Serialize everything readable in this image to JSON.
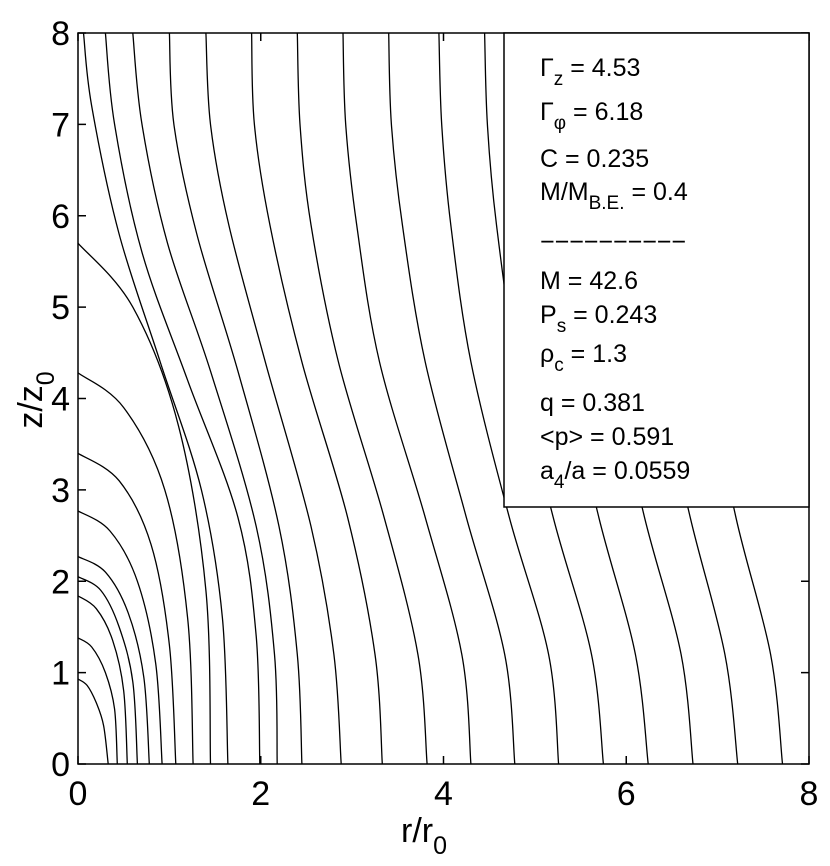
{
  "chart_data": {
    "type": "line",
    "title": "",
    "xlabel": "r/r",
    "xlabel_sub": "0",
    "ylabel": "z/z",
    "ylabel_sub": "0",
    "xlim": [
      0,
      8
    ],
    "ylim": [
      0,
      8
    ],
    "xticks": [
      "0",
      "2",
      "4",
      "6",
      "8"
    ],
    "yticks": [
      "0",
      "1",
      "2",
      "3",
      "4",
      "5",
      "6",
      "7",
      "8"
    ],
    "grid": false,
    "description_lines": "contour lines of field",
    "series": [
      {
        "points": [
          [
            0.0,
            0.93
          ],
          [
            0.1,
            0.86
          ],
          [
            0.2,
            0.67
          ],
          [
            0.28,
            0.42
          ],
          [
            0.33,
            0.0
          ]
        ]
      },
      {
        "points": [
          [
            0.0,
            1.38
          ],
          [
            0.15,
            1.28
          ],
          [
            0.3,
            1.0
          ],
          [
            0.4,
            0.6
          ],
          [
            0.43,
            0.0
          ]
        ]
      },
      {
        "points": [
          [
            0.0,
            1.84
          ],
          [
            0.2,
            1.7
          ],
          [
            0.38,
            1.35
          ],
          [
            0.5,
            0.8
          ],
          [
            0.54,
            0.0
          ]
        ]
      },
      {
        "points": [
          [
            0.0,
            2.05
          ],
          [
            0.25,
            1.9
          ],
          [
            0.45,
            1.5
          ],
          [
            0.6,
            0.9
          ],
          [
            0.65,
            0.0
          ]
        ]
      },
      {
        "points": [
          [
            0.0,
            2.27
          ],
          [
            0.3,
            2.1
          ],
          [
            0.55,
            1.65
          ],
          [
            0.72,
            0.95
          ],
          [
            0.78,
            0.0
          ]
        ]
      },
      {
        "points": [
          [
            0.0,
            2.77
          ],
          [
            0.35,
            2.55
          ],
          [
            0.65,
            2.0
          ],
          [
            0.85,
            1.1
          ],
          [
            0.92,
            0.0
          ]
        ]
      },
      {
        "points": [
          [
            0.0,
            3.4
          ],
          [
            0.45,
            3.1
          ],
          [
            0.8,
            2.4
          ],
          [
            1.0,
            1.3
          ],
          [
            1.07,
            0.0
          ]
        ]
      },
      {
        "points": [
          [
            0.0,
            4.28
          ],
          [
            0.5,
            3.9
          ],
          [
            0.95,
            3.0
          ],
          [
            1.2,
            1.6
          ],
          [
            1.26,
            0.0
          ]
        ]
      },
      {
        "points": [
          [
            0.0,
            5.7
          ],
          [
            0.6,
            5.0
          ],
          [
            1.1,
            3.7
          ],
          [
            1.4,
            1.9
          ],
          [
            1.45,
            0.0
          ]
        ]
      },
      {
        "points": [
          [
            0.06,
            8.0
          ],
          [
            0.15,
            7.2
          ],
          [
            0.45,
            5.8
          ],
          [
            0.9,
            4.4
          ],
          [
            1.35,
            3.0
          ],
          [
            1.58,
            1.6
          ],
          [
            1.64,
            0.0
          ]
        ]
      },
      {
        "points": [
          [
            0.3,
            8.0
          ],
          [
            0.4,
            7.0
          ],
          [
            0.7,
            5.6
          ],
          [
            1.2,
            4.2
          ],
          [
            1.75,
            2.7
          ],
          [
            1.95,
            1.4
          ],
          [
            1.99,
            0.0
          ]
        ]
      },
      {
        "points": [
          [
            0.6,
            8.0
          ],
          [
            0.7,
            7.0
          ],
          [
            0.98,
            5.7
          ],
          [
            1.45,
            4.3
          ],
          [
            1.95,
            2.6
          ],
          [
            2.15,
            1.2
          ],
          [
            2.18,
            0.0
          ]
        ]
      },
      {
        "points": [
          [
            1.0,
            8.0
          ],
          [
            1.05,
            7.0
          ],
          [
            1.3,
            5.8
          ],
          [
            1.75,
            4.3
          ],
          [
            2.2,
            2.6
          ],
          [
            2.4,
            1.2
          ],
          [
            2.45,
            0.0
          ]
        ]
      },
      {
        "points": [
          [
            1.4,
            8.0
          ],
          [
            1.45,
            7.0
          ],
          [
            1.65,
            5.9
          ],
          [
            2.05,
            4.4
          ],
          [
            2.55,
            2.6
          ],
          [
            2.8,
            1.2
          ],
          [
            2.88,
            0.0
          ]
        ]
      },
      {
        "points": [
          [
            1.9,
            8.0
          ],
          [
            1.93,
            7.0
          ],
          [
            2.1,
            5.9
          ],
          [
            2.45,
            4.4
          ],
          [
            2.95,
            2.7
          ],
          [
            3.25,
            1.2
          ],
          [
            3.33,
            0.0
          ]
        ]
      },
      {
        "points": [
          [
            2.4,
            8.0
          ],
          [
            2.43,
            7.0
          ],
          [
            2.55,
            5.9
          ],
          [
            2.85,
            4.4
          ],
          [
            3.35,
            2.7
          ],
          [
            3.72,
            1.2
          ],
          [
            3.82,
            0.0
          ]
        ]
      },
      {
        "points": [
          [
            2.9,
            8.0
          ],
          [
            2.93,
            7.0
          ],
          [
            3.05,
            5.9
          ],
          [
            3.3,
            4.4
          ],
          [
            3.8,
            2.7
          ],
          [
            4.2,
            1.2
          ],
          [
            4.3,
            0.0
          ]
        ]
      },
      {
        "points": [
          [
            3.4,
            8.0
          ],
          [
            3.43,
            7.0
          ],
          [
            3.55,
            5.9
          ],
          [
            3.8,
            4.4
          ],
          [
            4.25,
            2.7
          ],
          [
            4.67,
            1.2
          ],
          [
            4.78,
            0.0
          ]
        ]
      },
      {
        "points": [
          [
            3.95,
            8.0
          ],
          [
            3.98,
            7.0
          ],
          [
            4.08,
            5.9
          ],
          [
            4.3,
            4.4
          ],
          [
            4.72,
            2.7
          ],
          [
            5.15,
            1.2
          ],
          [
            5.26,
            0.0
          ]
        ]
      },
      {
        "points": [
          [
            4.45,
            8.0
          ],
          [
            4.48,
            7.0
          ],
          [
            4.58,
            5.9
          ],
          [
            4.8,
            4.4
          ],
          [
            5.2,
            2.7
          ],
          [
            5.62,
            1.2
          ],
          [
            5.75,
            0.0
          ]
        ]
      },
      {
        "points": [
          [
            5.0,
            8.0
          ],
          [
            5.03,
            7.0
          ],
          [
            5.12,
            5.9
          ],
          [
            5.32,
            4.4
          ],
          [
            5.7,
            2.7
          ],
          [
            6.1,
            1.2
          ],
          [
            6.24,
            0.0
          ]
        ]
      },
      {
        "points": [
          [
            5.55,
            8.0
          ],
          [
            5.57,
            7.0
          ],
          [
            5.65,
            5.9
          ],
          [
            5.83,
            4.4
          ],
          [
            6.2,
            2.7
          ],
          [
            6.6,
            1.2
          ],
          [
            6.73,
            0.0
          ]
        ]
      },
      {
        "points": [
          [
            6.05,
            8.0
          ],
          [
            6.07,
            7.0
          ],
          [
            6.15,
            5.9
          ],
          [
            6.33,
            4.4
          ],
          [
            6.7,
            2.7
          ],
          [
            7.08,
            1.2
          ],
          [
            7.22,
            0.0
          ]
        ]
      },
      {
        "points": [
          [
            6.6,
            8.0
          ],
          [
            6.62,
            7.0
          ],
          [
            6.7,
            5.9
          ],
          [
            6.87,
            4.4
          ],
          [
            7.2,
            2.7
          ],
          [
            7.58,
            1.2
          ],
          [
            7.71,
            0.0
          ]
        ]
      }
    ]
  },
  "legend": {
    "lines": [
      {
        "main": "Γ",
        "sub": "z",
        "rest": " = 4.53"
      },
      {
        "main": "Γ",
        "sub": "φ",
        "rest": " = 6.18"
      },
      {
        "main": "C = 0.235",
        "sub": "",
        "rest": ""
      },
      {
        "main": "M/M",
        "sub": "B.E.",
        "rest": " = 0.4"
      },
      {
        "main": "−−−−−−−−−−",
        "sub": "",
        "rest": ""
      },
      {
        "main": "M = 42.6",
        "sub": "",
        "rest": ""
      },
      {
        "main": "P",
        "sub": "s",
        "rest": " = 0.243"
      },
      {
        "main": "ρ",
        "sub": "c",
        "rest": " = 1.3"
      },
      {
        "main": "q = 0.381",
        "sub": "",
        "rest": ""
      },
      {
        "main": "<p> = 0.591",
        "sub": "",
        "rest": ""
      },
      {
        "main": "a",
        "sub": "4",
        "rest": "/a = 0.0559"
      }
    ]
  }
}
